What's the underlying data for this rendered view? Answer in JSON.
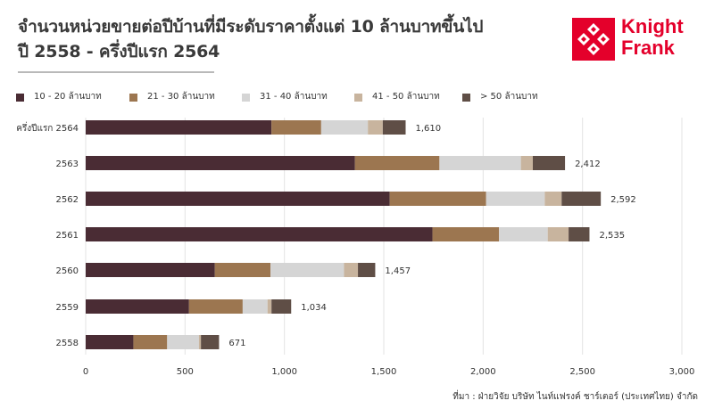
{
  "title_line1": "จำนวนหน่วยขายต่อปีบ้านที่มีระดับราคาตั้งแต่ 10 ล้านบาทขึ้นไป",
  "title_line2": "ปี 2558 - ครึ่งปีแรก 2564",
  "logo": {
    "line1": "Knight",
    "line2": "Frank",
    "icon": "knight-frank-logo-icon",
    "color": "#e4002b"
  },
  "source": "ที่มา : ฝ่ายวิจัย บริษัท ไนท์แฟรงค์ ชาร์เตอร์ (ประเทศไทย) จำกัด",
  "chart_data": {
    "type": "bar",
    "orientation": "horizontal",
    "stacked": true,
    "categories": [
      "ครึ่งปีแรก 2564",
      "2563",
      "2562",
      "2561",
      "2560",
      "2559",
      "2558"
    ],
    "series": [
      {
        "name": "10 - 20 ล้านบาท",
        "color": "#4a2c34",
        "values": [
          935,
          1355,
          1530,
          1745,
          650,
          520,
          240
        ]
      },
      {
        "name": "21 - 30 ล้านบาท",
        "color": "#9c7650",
        "values": [
          250,
          425,
          485,
          335,
          280,
          270,
          170
        ]
      },
      {
        "name": "31 - 40 ล้านบาท",
        "color": "#d5d5d5",
        "values": [
          235,
          410,
          295,
          245,
          370,
          125,
          160
        ]
      },
      {
        "name": "41 - 50 ล้านบาท",
        "color": "#c8b49e",
        "values": [
          75,
          60,
          85,
          105,
          70,
          20,
          10
        ]
      },
      {
        "name": "> 50 ล้านบาท",
        "color": "#5f4e46",
        "values": [
          115,
          162,
          197,
          105,
          87,
          99,
          91
        ]
      }
    ],
    "totals": [
      1610,
      2412,
      2592,
      2535,
      1457,
      1034,
      671
    ],
    "total_labels": [
      "1,610",
      "2,412",
      "2,592",
      "2,535",
      "1,457",
      "1,034",
      "671"
    ],
    "x_ticks": [
      0,
      500,
      1000,
      1500,
      2000,
      2500,
      3000
    ],
    "x_tick_labels": [
      "0",
      "500",
      "1,000",
      "1,500",
      "2,000",
      "2,500",
      "3,000"
    ],
    "xlim": [
      0,
      3000
    ],
    "xlabel": "",
    "ylabel": "",
    "grid": "vertical",
    "legend": "top"
  }
}
